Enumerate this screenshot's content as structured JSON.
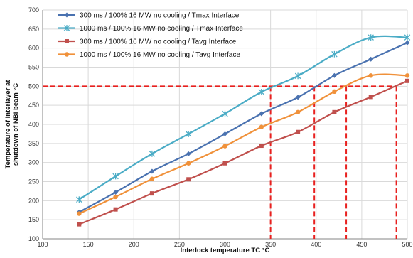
{
  "chart_data": {
    "type": "line",
    "xlabel": "Interlock temperature  TC °C",
    "ylabel_lines": [
      "Temperature of Interlayer at",
      "shutdown of NBI beam °C"
    ],
    "xlim": [
      100,
      500
    ],
    "ylim": [
      100,
      700
    ],
    "x_ticks": [
      100,
      150,
      200,
      250,
      300,
      350,
      400,
      450,
      500
    ],
    "y_ticks": [
      100,
      150,
      200,
      250,
      300,
      350,
      400,
      450,
      500,
      550,
      600,
      650,
      700
    ],
    "grid": true,
    "legend_position": "top-left",
    "series": [
      {
        "name": "300 ms / 100% 16 MW no cooling / Tmax Interface",
        "color": "#4a72b0",
        "marker": "diamond",
        "x": [
          140,
          180,
          220,
          260,
          300,
          340,
          380,
          420,
          460,
          500
        ],
        "y": [
          170,
          222,
          277,
          323,
          375,
          428,
          471,
          528,
          571,
          614
        ]
      },
      {
        "name": "1000 ms / 100% 16 MW no cooling / Tmax Interface",
        "color": "#4bacc6",
        "marker": "star",
        "x": [
          140,
          180,
          220,
          260,
          300,
          340,
          380,
          420,
          460,
          500
        ],
        "y": [
          203,
          264,
          323,
          375,
          428,
          485,
          527,
          584,
          628,
          628
        ]
      },
      {
        "name": "300 ms / 100% 16 MW no cooling / Tavg Interface",
        "color": "#c0504d",
        "marker": "square",
        "x": [
          140,
          180,
          220,
          260,
          300,
          340,
          380,
          420,
          460,
          500
        ],
        "y": [
          138,
          177,
          219,
          256,
          298,
          344,
          380,
          432,
          472,
          514
        ]
      },
      {
        "name": "1000 ms / 100% 16 MW no cooling / Tavg Interface",
        "color": "#f0913a",
        "marker": "circle",
        "x": [
          140,
          180,
          220,
          260,
          300,
          340,
          380,
          420,
          460,
          500
        ],
        "y": [
          166,
          210,
          257,
          298,
          343,
          393,
          432,
          486,
          528,
          528
        ]
      }
    ],
    "reference_lines": {
      "color": "#e8201f",
      "horizontal_y": 500,
      "vertical_x": [
        350,
        398,
        433,
        488
      ]
    }
  }
}
